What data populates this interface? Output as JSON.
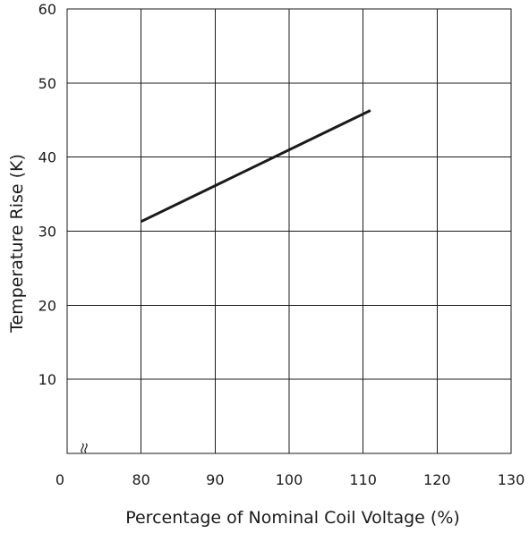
{
  "chart_data": {
    "type": "line",
    "title": "",
    "xlabel": "Percentage of Nominal Coil Voltage (%)",
    "ylabel": "Temperature Rise (K)",
    "x_ticks": [
      "0",
      "80",
      "90",
      "100",
      "110",
      "120",
      "130"
    ],
    "y_ticks": [
      "10",
      "20",
      "30",
      "40",
      "50",
      "60"
    ],
    "x_axis_break": true,
    "xlim": [
      70,
      130
    ],
    "ylim": [
      0,
      60
    ],
    "grid": true,
    "series": [
      {
        "x": [
          80,
          111
        ],
        "y": [
          31.3,
          46.3
        ],
        "color": "#1a1a1a"
      }
    ]
  }
}
